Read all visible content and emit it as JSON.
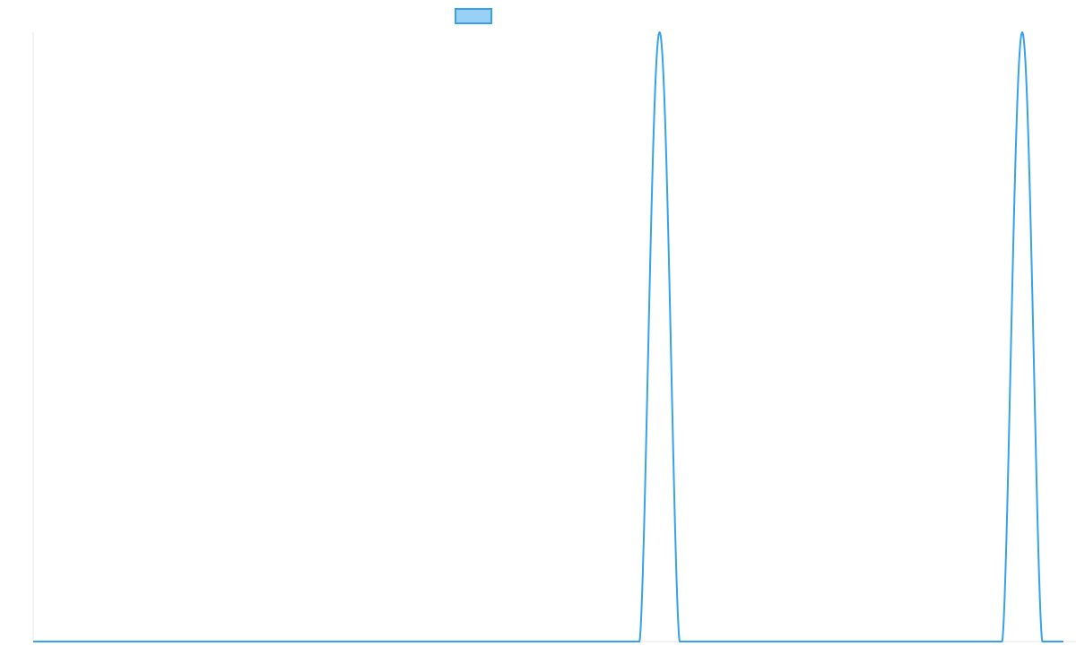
{
  "chart_data": {
    "type": "line",
    "title": "",
    "xlabel": "",
    "ylabel": "",
    "legend": {
      "placement": "top-center",
      "entries": [
        {
          "label": "",
          "color": "#36a2eb",
          "fill": "#9ad0f5"
        }
      ]
    },
    "grid": false,
    "xlim": [
      0,
      1000
    ],
    "ylim": [
      0,
      1
    ],
    "series": [
      {
        "color": "#36a2eb",
        "peaks": [
          {
            "center": 608,
            "half_width": 19.5,
            "height": 1
          },
          {
            "center": 960,
            "half_width": 19.5,
            "height": 1
          }
        ]
      }
    ]
  }
}
